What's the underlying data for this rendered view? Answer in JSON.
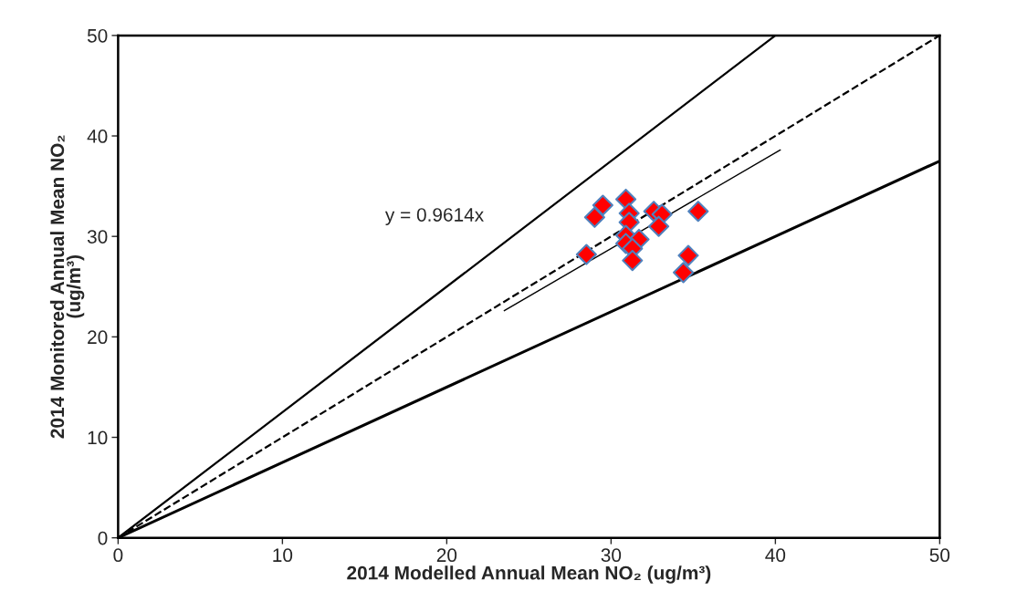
{
  "chart_data": {
    "type": "scatter",
    "xlabel": "2014 Modelled Annual Mean NO₂ (ug/m³)",
    "ylabel": "2014 Monitored Annual Mean NO₂\n(ug/m³)",
    "annotations": [
      "y = 0.9614x"
    ],
    "xlim": [
      0,
      50
    ],
    "ylim": [
      0,
      50
    ],
    "xticks": [
      0,
      10,
      20,
      30,
      40,
      50
    ],
    "yticks": [
      0,
      10,
      20,
      30,
      40,
      50
    ],
    "grid": false,
    "legend": false,
    "series": [
      {
        "type": "line",
        "color": "#000000",
        "line_style": "solid",
        "x": [
          0,
          40
        ],
        "values": [
          0,
          50
        ]
      },
      {
        "type": "line",
        "color": "#000000",
        "line_style": "dashed",
        "x": [
          0,
          50
        ],
        "values": [
          0,
          50
        ]
      },
      {
        "type": "line",
        "color": "#000000",
        "line_style": "solid",
        "x": [
          0,
          50
        ],
        "values": [
          0,
          37.5
        ]
      },
      {
        "type": "line",
        "color": "#000000",
        "line_style": "solid",
        "x": [
          23.5,
          40.3
        ],
        "values": [
          22.6,
          38.6
        ]
      },
      {
        "color": "#ff0000",
        "marker": "diamond",
        "x": [
          29.5,
          29.0,
          30.9,
          31.1,
          31.1,
          30.9,
          31.7,
          30.9,
          31.3,
          31.3,
          32.6,
          33.1,
          32.9,
          35.3,
          28.5,
          34.7,
          34.4
        ],
        "values": [
          33.1,
          31.9,
          33.7,
          32.3,
          31.4,
          30.1,
          29.7,
          29.3,
          28.8,
          27.6,
          32.5,
          32.2,
          31.0,
          32.5,
          28.2,
          28.1,
          26.4
        ]
      }
    ]
  }
}
